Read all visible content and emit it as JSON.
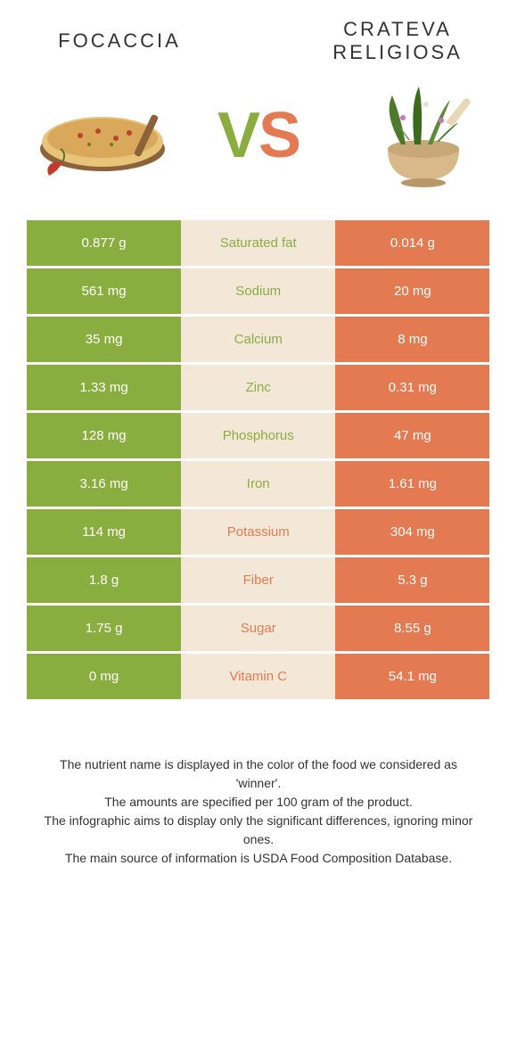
{
  "foods": {
    "left": {
      "name": "Focaccia",
      "color": "#8aad3f"
    },
    "right": {
      "name": "Crateva religiosa",
      "color": "#e37a52"
    }
  },
  "vs": {
    "v": "V",
    "s": "S"
  },
  "rows": [
    {
      "nutrient": "Saturated fat",
      "left": "0.877 g",
      "right": "0.014 g",
      "winner": "left"
    },
    {
      "nutrient": "Sodium",
      "left": "561 mg",
      "right": "20 mg",
      "winner": "left"
    },
    {
      "nutrient": "Calcium",
      "left": "35 mg",
      "right": "8 mg",
      "winner": "left"
    },
    {
      "nutrient": "Zinc",
      "left": "1.33 mg",
      "right": "0.31 mg",
      "winner": "left"
    },
    {
      "nutrient": "Phosphorus",
      "left": "128 mg",
      "right": "47 mg",
      "winner": "left"
    },
    {
      "nutrient": "Iron",
      "left": "3.16 mg",
      "right": "1.61 mg",
      "winner": "left"
    },
    {
      "nutrient": "Potassium",
      "left": "114 mg",
      "right": "304 mg",
      "winner": "right"
    },
    {
      "nutrient": "Fiber",
      "left": "1.8 g",
      "right": "5.3 g",
      "winner": "right"
    },
    {
      "nutrient": "Sugar",
      "left": "1.75 g",
      "right": "8.55 g",
      "winner": "right"
    },
    {
      "nutrient": "Vitamin C",
      "left": "0 mg",
      "right": "54.1 mg",
      "winner": "right"
    }
  ],
  "footer": {
    "line1": "The nutrient name is displayed in the color of the food we considered as 'winner'.",
    "line2": "The amounts are specified per 100 gram of the product.",
    "line3": "The infographic aims to display only the significant differences, ignoring minor ones.",
    "line4": "The main source of information is USDA Food Composition Database."
  },
  "colors": {
    "left_bg": "#8aad3f",
    "right_bg": "#e37a52",
    "mid_bg": "#f3e8d8",
    "page_bg": "#ffffff"
  }
}
